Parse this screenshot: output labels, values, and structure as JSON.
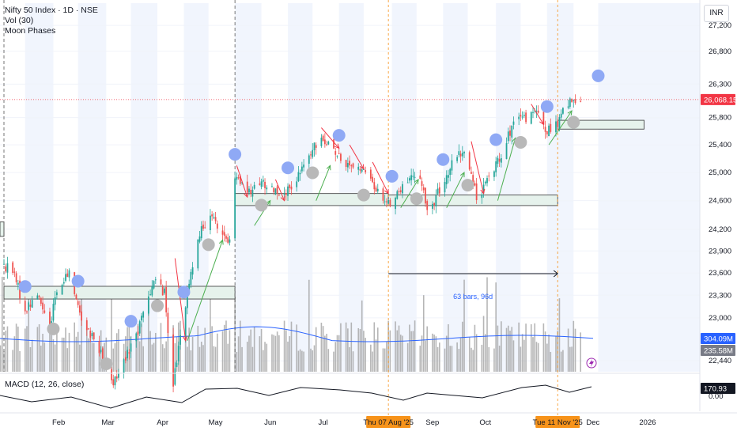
{
  "header": {
    "symbol_line": "Nifty 50 Index · 1D · NSE",
    "indicator_vol": "Vol (30)",
    "indicator_moon": "Moon Phases",
    "currency": "INR"
  },
  "macd": {
    "label": "MACD (12, 26, close)",
    "value_badge": "170.93",
    "zero_label": "0.00"
  },
  "colors": {
    "up": "#26a69a",
    "down": "#ef5350",
    "full_moon": "#8fa9f5",
    "new_moon": "#b8b8b8",
    "volume_ma": "#2962ff",
    "last_price": "#f23645",
    "date_highlight": "#f7931a",
    "arrow_up": "#4caf50",
    "arrow_down": "#f23645"
  },
  "chart_data": {
    "type": "candlestick",
    "symbol": "Nifty 50 Index",
    "interval": "1D",
    "exchange": "NSE",
    "currency": "INR",
    "x_tick_labels": [
      "Feb",
      "Mar",
      "Apr",
      "May",
      "Jun",
      "Jul",
      "Thu 07 Aug '25",
      "Sep",
      "Oct",
      "Tue 11 Nov '25",
      "Dec",
      "2026"
    ],
    "y_tick_labels": [
      27200,
      26800,
      26300,
      25800,
      25400,
      25000,
      24600,
      24200,
      23900,
      23600,
      23300,
      23000,
      22440
    ],
    "y_scale": "log",
    "ylim": [
      22300,
      27550
    ],
    "last_price": 26068.15,
    "last_price_label": "26,068.15",
    "volume_ma_label": "304.09M",
    "volume_label": "235.58M",
    "measure_label": "63 bars, 96d",
    "measure_range": [
      "2025-08-07",
      "2025-11-11"
    ],
    "price_anchors": [
      [
        "2025-01-01",
        23700
      ],
      [
        "2025-01-06",
        23620
      ],
      [
        "2025-01-13",
        23100
      ],
      [
        "2025-01-20",
        23300
      ],
      [
        "2025-01-27",
        22900
      ],
      [
        "2025-01-30",
        23270
      ],
      [
        "2025-02-03",
        23450
      ],
      [
        "2025-02-07",
        23600
      ],
      [
        "2025-02-14",
        23000
      ],
      [
        "2025-02-24",
        22600
      ],
      [
        "2025-03-04",
        22140
      ],
      [
        "2025-03-10",
        22460
      ],
      [
        "2025-03-18",
        22830
      ],
      [
        "2025-03-27",
        23520
      ],
      [
        "2025-04-02",
        23330
      ],
      [
        "2025-04-07",
        22150
      ],
      [
        "2025-04-15",
        23320
      ],
      [
        "2025-04-21",
        24120
      ],
      [
        "2025-04-29",
        24350
      ],
      [
        "2025-05-09",
        24000
      ],
      [
        "2025-05-12",
        24920
      ],
      [
        "2025-05-20",
        24700
      ],
      [
        "2025-05-27",
        24850
      ],
      [
        "2025-06-05",
        24750
      ],
      [
        "2025-06-13",
        24720
      ],
      [
        "2025-06-20",
        25110
      ],
      [
        "2025-06-30",
        25520
      ],
      [
        "2025-07-04",
        25450
      ],
      [
        "2025-07-11",
        25150
      ],
      [
        "2025-07-21",
        25090
      ],
      [
        "2025-07-31",
        24770
      ],
      [
        "2025-08-07",
        24550
      ],
      [
        "2025-08-18",
        24870
      ],
      [
        "2025-08-25",
        24970
      ],
      [
        "2025-08-29",
        24430
      ],
      [
        "2025-09-05",
        24740
      ],
      [
        "2025-09-12",
        25110
      ],
      [
        "2025-09-19",
        25330
      ],
      [
        "2025-09-26",
        24650
      ],
      [
        "2025-10-01",
        24830
      ],
      [
        "2025-10-10",
        25280
      ],
      [
        "2025-10-17",
        25710
      ],
      [
        "2025-10-24",
        25800
      ],
      [
        "2025-10-30",
        25880
      ],
      [
        "2025-11-04",
        25600
      ],
      [
        "2025-11-11",
        25690
      ],
      [
        "2025-11-14",
        25910
      ],
      [
        "2025-11-20",
        26060
      ],
      [
        "2025-11-24",
        26068
      ]
    ],
    "full_moons": [
      "2025-01-13",
      "2025-02-12",
      "2025-03-14",
      "2025-04-13",
      "2025-05-12",
      "2025-06-11",
      "2025-07-10",
      "2025-08-09",
      "2025-09-07",
      "2025-10-07",
      "2025-11-05",
      "2025-12-04"
    ],
    "new_moons": [
      "2025-01-29",
      "2025-02-28",
      "2025-03-29",
      "2025-04-27",
      "2025-05-27",
      "2025-06-25",
      "2025-07-24",
      "2025-08-23",
      "2025-09-21",
      "2025-10-21",
      "2025-11-20"
    ],
    "horizontal_zones": [
      {
        "from": "2024-12-01",
        "to": "2025-01-01",
        "low": 24100,
        "high": 24300
      },
      {
        "from": "2025-01-01",
        "to": "2025-05-12",
        "low": 23250,
        "high": 23420
      },
      {
        "from": "2025-05-12",
        "to": "2025-08-07",
        "low": 24530,
        "high": 24700
      },
      {
        "from": "2025-08-07",
        "to": "2025-11-11",
        "low": 24530,
        "high": 24680
      },
      {
        "from": "2025-11-11",
        "to": "2025-12-30",
        "low": 25630,
        "high": 25760
      }
    ],
    "arrows_down": [
      [
        [
          "2025-04-08",
          23800
        ],
        [
          "2025-04-14",
          22700
        ]
      ],
      [
        [
          "2025-05-13",
          25100
        ],
        [
          "2025-05-19",
          24650
        ]
      ],
      [
        [
          "2025-06-04",
          24900
        ],
        [
          "2025-06-09",
          24600
        ]
      ],
      [
        [
          "2025-06-30",
          25650
        ],
        [
          "2025-07-10",
          25350
        ]
      ],
      [
        [
          "2025-07-16",
          25400
        ],
        [
          "2025-07-24",
          25050
        ]
      ],
      [
        [
          "2025-07-29",
          25150
        ],
        [
          "2025-08-07",
          24700
        ]
      ],
      [
        [
          "2025-09-23",
          25450
        ],
        [
          "2025-09-30",
          24700
        ]
      ],
      [
        [
          "2025-10-27",
          26000
        ],
        [
          "2025-11-03",
          25700
        ]
      ]
    ],
    "arrows_up": [
      [
        [
          "2025-04-15",
          22700
        ],
        [
          "2025-05-05",
          24050
        ]
      ],
      [
        [
          "2025-05-23",
          24250
        ],
        [
          "2025-06-01",
          24600
        ]
      ],
      [
        [
          "2025-06-27",
          24600
        ],
        [
          "2025-07-05",
          25100
        ]
      ],
      [
        [
          "2025-08-14",
          24500
        ],
        [
          "2025-08-24",
          24900
        ]
      ],
      [
        [
          "2025-09-09",
          24500
        ],
        [
          "2025-09-19",
          25000
        ]
      ],
      [
        [
          "2025-10-08",
          24600
        ],
        [
          "2025-10-18",
          25500
        ]
      ],
      [
        [
          "2025-11-06",
          25400
        ],
        [
          "2025-11-19",
          25900
        ]
      ]
    ]
  }
}
